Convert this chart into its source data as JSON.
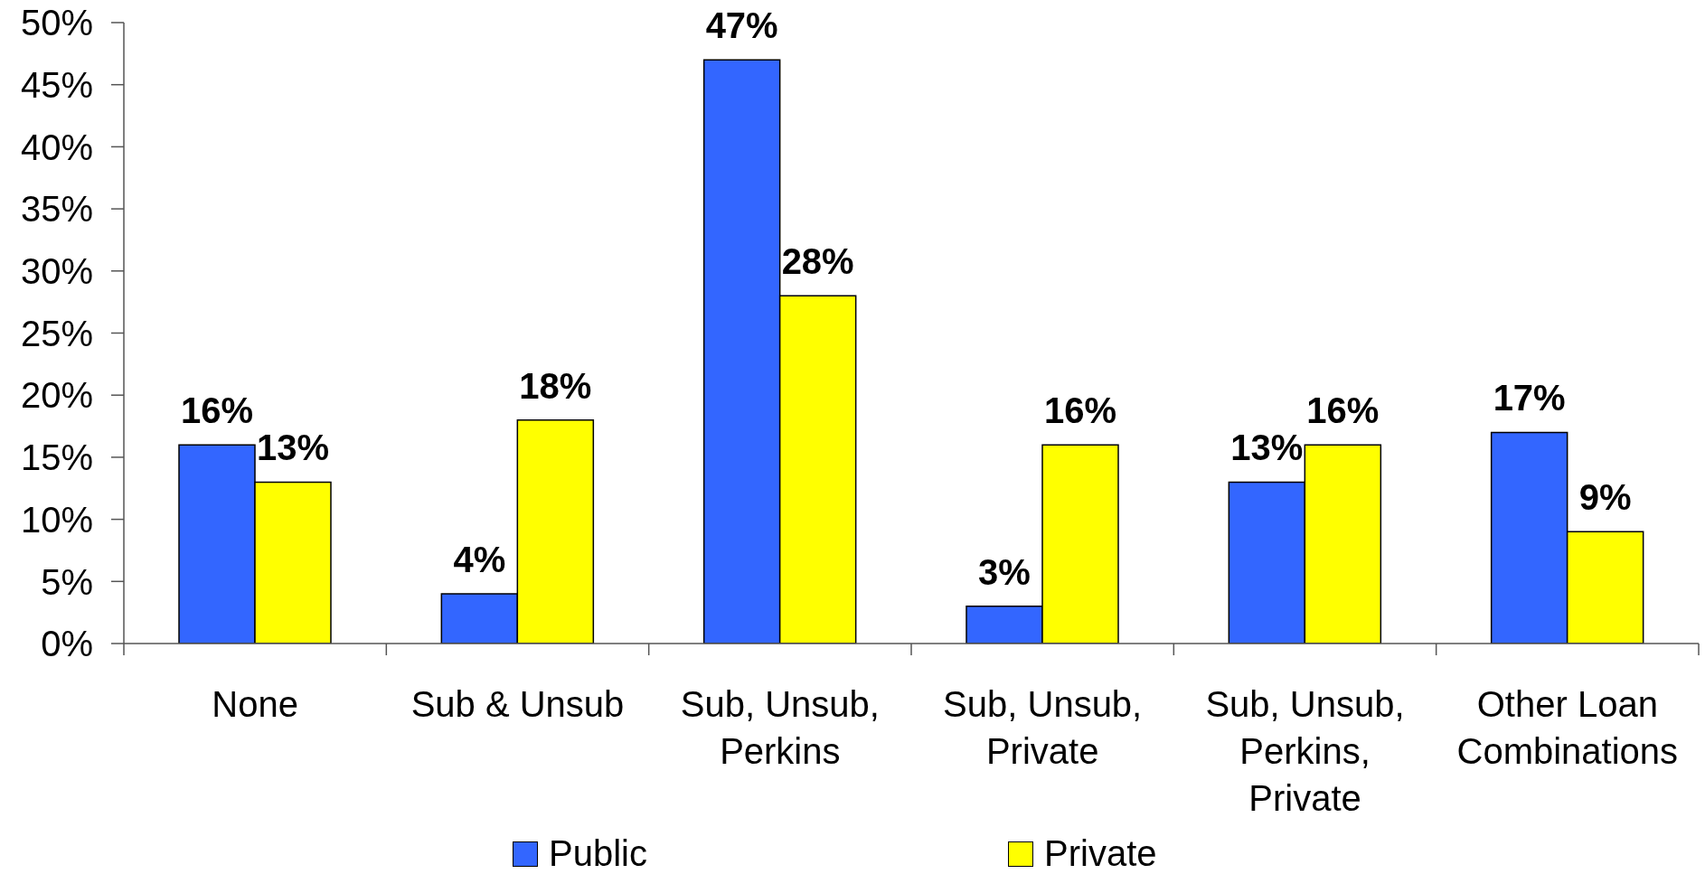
{
  "chart_data": {
    "type": "bar",
    "categories": [
      "None",
      "Sub & Unsub",
      "Sub, Unsub, Perkins",
      "Sub, Unsub, Private",
      "Sub, Unsub, Perkins, Private",
      "Other Loan Combinations"
    ],
    "series": [
      {
        "name": "Public",
        "color": "#3366ff",
        "values": [
          16,
          4,
          47,
          3,
          13,
          17
        ],
        "value_labels": [
          "16%",
          "4%",
          "47%",
          "3%",
          "13%",
          "17%"
        ]
      },
      {
        "name": "Private",
        "color": "#ffff00",
        "values": [
          13,
          18,
          28,
          16,
          16,
          9
        ],
        "value_labels": [
          "13%",
          "18%",
          "28%",
          "16%",
          "16%",
          "9%"
        ]
      }
    ],
    "ylim": [
      0,
      50
    ],
    "yticks": [
      {
        "value": 0,
        "label": "0%"
      },
      {
        "value": 5,
        "label": "5%"
      },
      {
        "value": 10,
        "label": "10%"
      },
      {
        "value": 15,
        "label": "15%"
      },
      {
        "value": 20,
        "label": "20%"
      },
      {
        "value": 25,
        "label": "25%"
      },
      {
        "value": 30,
        "label": "30%"
      },
      {
        "value": 35,
        "label": "35%"
      },
      {
        "value": 40,
        "label": "40%"
      },
      {
        "value": 45,
        "label": "45%"
      },
      {
        "value": 50,
        "label": "50%"
      }
    ],
    "legend": "bottom"
  }
}
